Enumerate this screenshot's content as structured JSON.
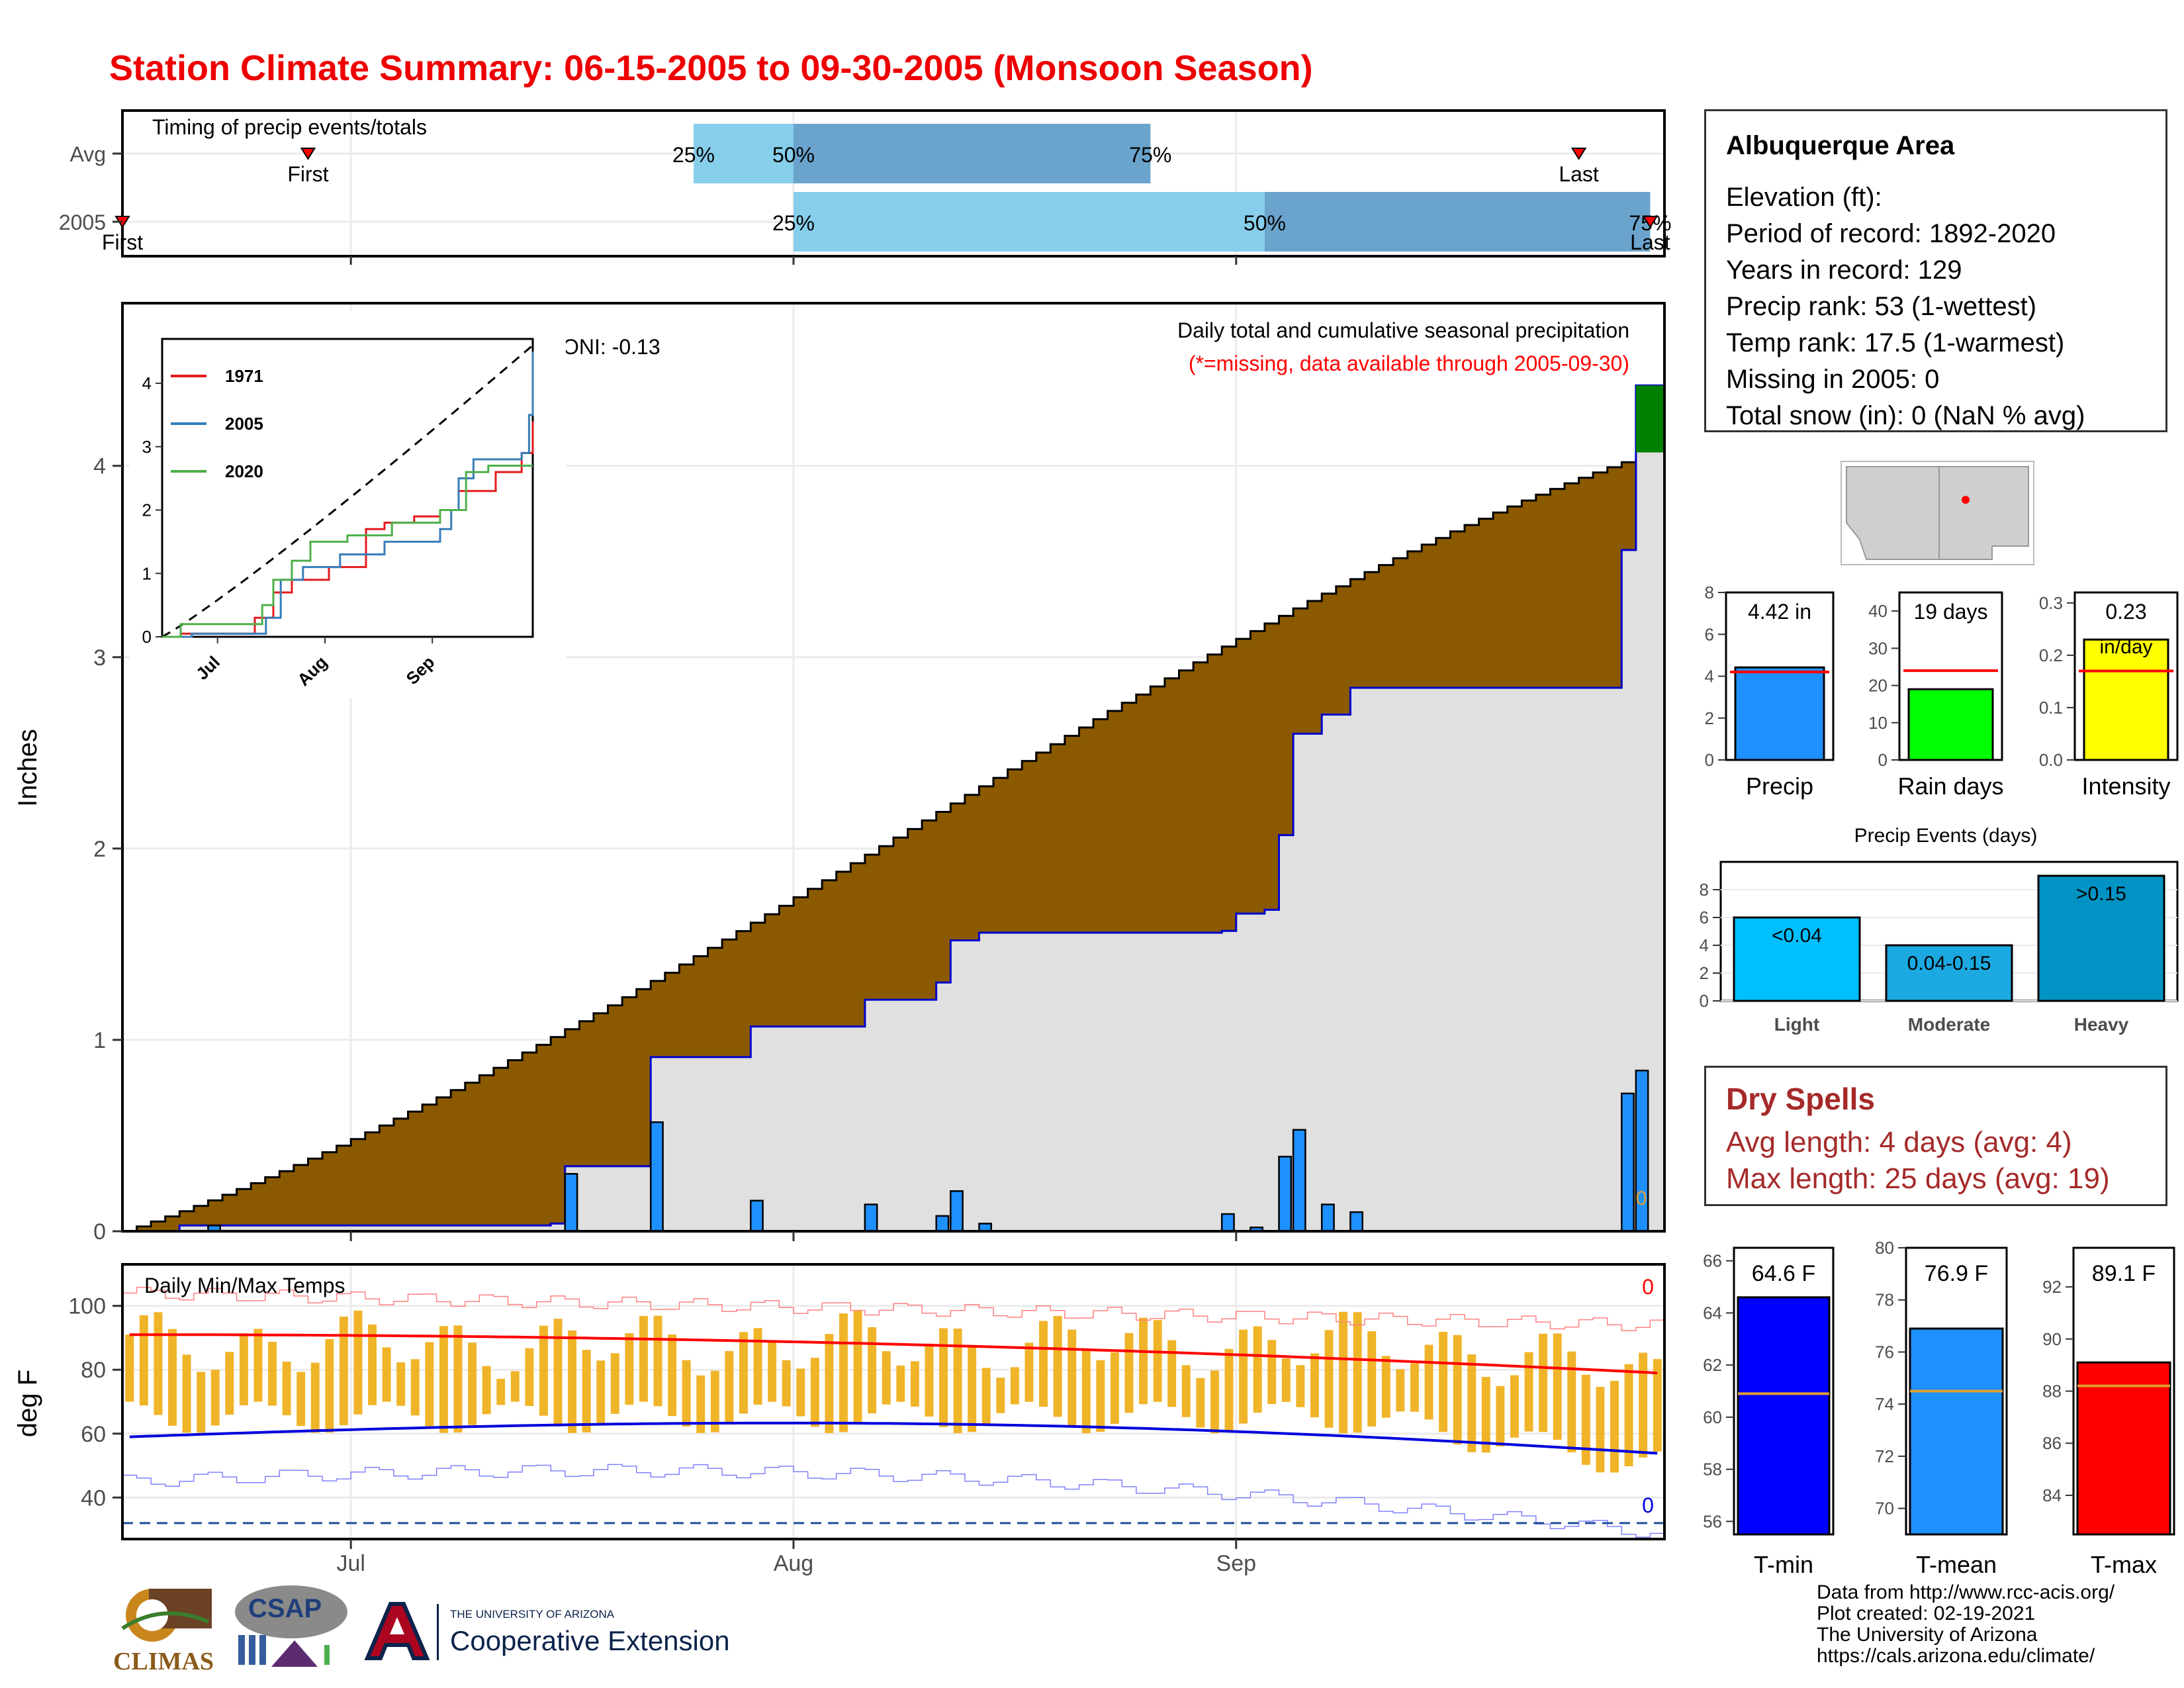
{
  "title": "Station Climate Summary: 06-15-2005 to 09-30-2005 (Monsoon Season)",
  "colors": {
    "title": "#ee0000",
    "q1": "#87ceeb",
    "q2": "#6aa3cc",
    "cumulative_fill": "#8b5a00",
    "current_fill": "#e0e0e0",
    "daily_bar": "#1e90ff",
    "surplus": "#008000",
    "temp_bar": "#f0b429",
    "dry_spell": "#a52a2a"
  },
  "timing": {
    "label": "Timing of precip events/totals",
    "rows": [
      "Avg",
      "2005"
    ],
    "first_label": "First",
    "last_label": "Last",
    "avg": {
      "first": "06-28",
      "q25": "07-25",
      "q50": "08-01",
      "q75": "08-26",
      "last": "09-25"
    },
    "y2005": {
      "first": "06-15",
      "q25": "08-01",
      "q50": "09-03",
      "q75": "09-30",
      "last": "09-30"
    },
    "pct_labels": [
      "25%",
      "50%",
      "75%"
    ]
  },
  "main": {
    "ylabel": "Inches",
    "legend_title": "Daily total and cumulative seasonal precipitation",
    "missing_note": "(*=missing, data available through 2005-09-30)",
    "oni": "ONI: -0.13",
    "missing_count": "0",
    "x_ticks": [
      "Jul",
      "Aug",
      "Sep"
    ],
    "y_ticks": [
      "0",
      "1",
      "2",
      "3",
      "4"
    ]
  },
  "inset": {
    "x_ticks": [
      "Jul",
      "Aug",
      "Sep"
    ],
    "y_ticks": [
      "0",
      "1",
      "2",
      "3",
      "4"
    ],
    "series": [
      {
        "name": "1971",
        "color": "#e41a1c"
      },
      {
        "name": "2005",
        "color": "#377eb8"
      },
      {
        "name": "2020",
        "color": "#4daf4a"
      }
    ]
  },
  "temps": {
    "label": "Daily Min/Max Temps",
    "ylabel": "deg F",
    "y_ticks": [
      "40",
      "60",
      "80",
      "100"
    ],
    "x_ticks": [
      "Jul",
      "Aug",
      "Sep"
    ],
    "missing_top": "0",
    "missing_bottom": "0"
  },
  "station": {
    "name": "Albuquerque Area",
    "lines": [
      "Elevation (ft):",
      "Period of record: 1892-2020",
      "Years in record: 129",
      "Precip rank: 53 (1-wettest)",
      "Temp rank: 17.5 (1-warmest)",
      "Missing in 2005: 0",
      "Total snow (in): 0 (NaN % avg)"
    ]
  },
  "summary_bars": [
    {
      "label": "Precip",
      "value_text": "4.42 in",
      "value": 4.42,
      "avg": 4.2,
      "ymax": 8,
      "ticks": [
        "0",
        "2",
        "4",
        "6",
        "8"
      ],
      "color": "#1e90ff"
    },
    {
      "label": "Rain days",
      "value_text": "19 days",
      "value": 19,
      "avg": 24,
      "ymax": 45,
      "ticks": [
        "0",
        "10",
        "20",
        "30",
        "40"
      ],
      "color": "#00ff00"
    },
    {
      "label": "Intensity",
      "value_text": "0.23",
      "unit_text": "in/day",
      "value": 0.23,
      "avg": 0.17,
      "ymax": 0.32,
      "ticks": [
        "0.0",
        "0.1",
        "0.2",
        "0.3"
      ],
      "color": "#ffff00"
    }
  ],
  "events": {
    "title": "Precip Events (days)",
    "categories": [
      "Light",
      "Moderate",
      "Heavy"
    ],
    "values": [
      6,
      4,
      9
    ],
    "labels": [
      "<0.04",
      "0.04-0.15",
      ">0.15"
    ],
    "colors": [
      "#00bfff",
      "#1ca8e0",
      "#0093c4"
    ],
    "ticks": [
      "0",
      "2",
      "4",
      "6",
      "8"
    ]
  },
  "dry_spells": {
    "title": "Dry Spells",
    "avg_line": "Avg length: 4 days (avg: 4)",
    "max_line": "Max length: 25 days (avg: 19)"
  },
  "temp_bars": [
    {
      "label": "T-min",
      "value_text": "64.6 F",
      "value": 64.6,
      "avg": 60.9,
      "min": 55.5,
      "max": 66.5,
      "ticks": [
        "56",
        "58",
        "60",
        "62",
        "64",
        "66"
      ],
      "color": "#0000ff"
    },
    {
      "label": "T-mean",
      "value_text": "76.9 F",
      "value": 76.9,
      "avg": 74.5,
      "min": 69.0,
      "max": 80.0,
      "ticks": [
        "70",
        "72",
        "74",
        "76",
        "78",
        "80"
      ],
      "color": "#1e90ff"
    },
    {
      "label": "T-max",
      "value_text": "89.1 F",
      "value": 89.1,
      "avg": 88.2,
      "min": 82.5,
      "max": 93.5,
      "ticks": [
        "84",
        "86",
        "88",
        "90",
        "92"
      ],
      "color": "#ff0000"
    }
  ],
  "footer": [
    "Data from http://www.rcc-acis.org/",
    "Plot created: 02-19-2021",
    "The University of Arizona",
    "https://cals.arizona.edu/climate/"
  ],
  "logos": {
    "climas": "CLIMAS",
    "csap": "CSAP",
    "ua_small": "THE UNIVERSITY OF ARIZONA",
    "ua_big": "Cooperative Extension"
  },
  "chart_data": {
    "type": "area",
    "title": "Daily total and cumulative seasonal precipitation",
    "ylabel": "Inches",
    "x_range": [
      "2005-06-15",
      "2005-09-30"
    ],
    "ylim": [
      0,
      4.85
    ],
    "avg_cumulative_end": 4.07,
    "cumulative_2005": [
      {
        "date": "2005-06-15",
        "value": 0.0
      },
      {
        "date": "2005-06-19",
        "value": 0.03
      },
      {
        "date": "2005-07-15",
        "value": 0.04
      },
      {
        "date": "2005-07-16",
        "value": 0.34
      },
      {
        "date": "2005-07-21",
        "value": 0.34
      },
      {
        "date": "2005-07-22",
        "value": 0.91
      },
      {
        "date": "2005-07-28",
        "value": 0.91
      },
      {
        "date": "2005-07-29",
        "value": 1.07
      },
      {
        "date": "2005-08-05",
        "value": 1.07
      },
      {
        "date": "2005-08-06",
        "value": 1.21
      },
      {
        "date": "2005-08-11",
        "value": 1.3
      },
      {
        "date": "2005-08-12",
        "value": 1.52
      },
      {
        "date": "2005-08-14",
        "value": 1.56
      },
      {
        "date": "2005-08-31",
        "value": 1.57
      },
      {
        "date": "2005-09-01",
        "value": 1.66
      },
      {
        "date": "2005-09-03",
        "value": 1.68
      },
      {
        "date": "2005-09-04",
        "value": 2.07
      },
      {
        "date": "2005-09-05",
        "value": 2.6
      },
      {
        "date": "2005-09-07",
        "value": 2.7
      },
      {
        "date": "2005-09-09",
        "value": 2.84
      },
      {
        "date": "2005-09-28",
        "value": 3.56
      },
      {
        "date": "2005-09-29",
        "value": 4.42
      }
    ],
    "daily_2005": [
      {
        "date": "2005-06-21",
        "value": 0.03
      },
      {
        "date": "2005-07-16",
        "value": 0.3
      },
      {
        "date": "2005-07-22",
        "value": 0.57
      },
      {
        "date": "2005-07-29",
        "value": 0.16
      },
      {
        "date": "2005-08-06",
        "value": 0.14
      },
      {
        "date": "2005-08-11",
        "value": 0.08
      },
      {
        "date": "2005-08-12",
        "value": 0.21
      },
      {
        "date": "2005-08-14",
        "value": 0.04
      },
      {
        "date": "2005-08-31",
        "value": 0.09
      },
      {
        "date": "2005-09-02",
        "value": 0.02
      },
      {
        "date": "2005-09-04",
        "value": 0.39
      },
      {
        "date": "2005-09-05",
        "value": 0.53
      },
      {
        "date": "2005-09-07",
        "value": 0.14
      },
      {
        "date": "2005-09-09",
        "value": 0.1
      },
      {
        "date": "2005-09-28",
        "value": 0.72
      },
      {
        "date": "2005-09-29",
        "value": 0.84
      }
    ]
  }
}
